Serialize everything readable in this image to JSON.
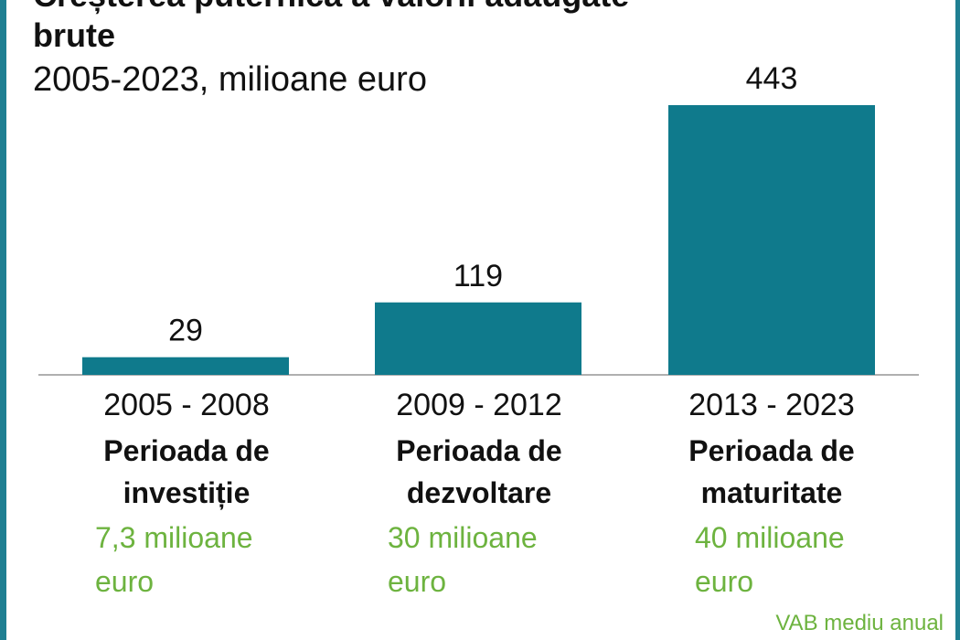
{
  "title_partial": "Creșterea puternică a valorii adăugate",
  "title_line2": "brute",
  "subtitle": "2005-2023, milioane euro",
  "note": "VAB mediu anual",
  "colors": {
    "bar": "#0f7a8c",
    "accent_green": "#6db33f",
    "frame": "#1f7f92"
  },
  "chart_data": {
    "type": "bar",
    "title": "brute",
    "subtitle": "2005-2023, milioane euro",
    "categories": [
      "2005 - 2008",
      "2009 - 2012",
      "2013 - 2023"
    ],
    "values": [
      29,
      119,
      443
    ],
    "data_labels": [
      "29",
      "119",
      "443"
    ],
    "ylim": [
      0,
      443
    ],
    "grid": false,
    "legend": "none"
  },
  "categories_detail": [
    {
      "period": "2005 - 2008",
      "name": "Perioada de investiție",
      "vab_line1": "7,3 milioane",
      "vab_line2": "euro"
    },
    {
      "period": "2009 - 2012",
      "name": "Perioada  de dezvoltare",
      "vab_line1": "30 milioane",
      "vab_line2": "euro"
    },
    {
      "period": "2013 - 2023",
      "name": "Perioada de maturitate",
      "vab_line1": "40 milioane",
      "vab_line2": "euro"
    }
  ]
}
